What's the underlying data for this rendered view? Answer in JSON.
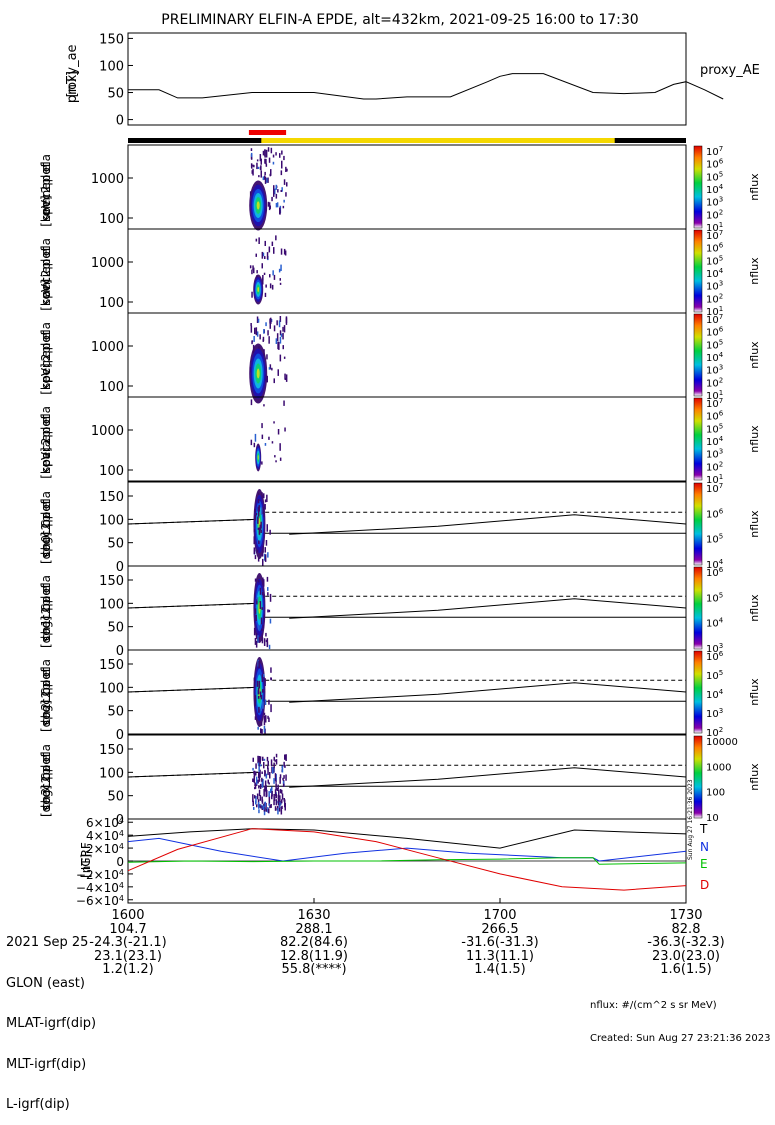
{
  "title": "PRELIMINARY ELFIN-A EPDE, alt=432km, 2021-09-25 16:00 to 17:30",
  "colors": {
    "black_bar": "#000000",
    "yellow_bar": "#f5d800",
    "red_bar": "#ee0000",
    "comp_T": "#000000",
    "comp_N": "#1030e0",
    "comp_E": "#00c000",
    "comp_D": "#e00000"
  },
  "chart_data": [
    {
      "type": "line",
      "ylabel": "proxy_ae\n[nT]",
      "yticks": [
        "150",
        "100",
        "50",
        "0"
      ],
      "ylim": [
        -10,
        160
      ],
      "series": [
        {
          "name": "proxy_AE",
          "x": [
            0,
            5,
            8,
            12,
            20,
            30,
            38,
            40,
            45,
            52,
            58,
            60,
            62,
            67,
            75,
            80,
            85,
            88,
            90,
            93,
            96
          ],
          "y": [
            55,
            55,
            40,
            40,
            50,
            50,
            38,
            38,
            42,
            42,
            70,
            80,
            85,
            85,
            50,
            48,
            50,
            65,
            70,
            55,
            38
          ]
        }
      ]
    },
    {
      "type": "heatmap",
      "panels": [
        {
          "ylabel": "ela\npef\nen\nspec2plot\nomni\n[keV]",
          "yticks": [
            "1000",
            "100"
          ],
          "zlabel": "nflux",
          "zticks": [
            "10^7",
            "10^6",
            "10^5",
            "10^4",
            "10^3",
            "10^2",
            "10^1"
          ]
        },
        {
          "ylabel": "ela\npef\nen\nspec2plot\nanti\n[keV]",
          "yticks": [
            "1000",
            "100"
          ],
          "zlabel": "nflux",
          "zticks": [
            "10^7",
            "10^6",
            "10^5",
            "10^4",
            "10^3",
            "10^2",
            "10^1"
          ]
        },
        {
          "ylabel": "ela\npef\nen\nspec2plot\nperp\n[keV]",
          "yticks": [
            "1000",
            "100"
          ],
          "zlabel": "nflux",
          "zticks": [
            "10^7",
            "10^6",
            "10^5",
            "10^4",
            "10^3",
            "10^2",
            "10^1"
          ]
        },
        {
          "ylabel": "ela\npef\nen\nspec2plot\npara\n[keV]",
          "yticks": [
            "1000",
            "100"
          ],
          "zlabel": "nflux",
          "zticks": [
            "10^7",
            "10^6",
            "10^5",
            "10^4",
            "10^3",
            "10^2",
            "10^1"
          ]
        },
        {
          "ylabel": "ela\npef\npa\nspec2plot\nch0LC\n[deg]",
          "yticks": [
            "150",
            "100",
            "50",
            "0"
          ],
          "zlabel": "nflux",
          "zticks": [
            "10^7",
            "10^6",
            "10^5",
            "10^4"
          ]
        },
        {
          "ylabel": "ela\npef\npa\nspec2plot\nch1LC\n[deg]",
          "yticks": [
            "150",
            "100",
            "50",
            "0"
          ],
          "zlabel": "nflux",
          "zticks": [
            "10^6",
            "10^5",
            "10^4",
            "10^3"
          ]
        },
        {
          "ylabel": "ela\npef\npa\nspec2plot\nch2LC\n[deg]",
          "yticks": [
            "150",
            "100",
            "50",
            "0"
          ],
          "zlabel": "nflux",
          "zticks": [
            "10^6",
            "10^5",
            "10^4",
            "10^3",
            "10^2"
          ]
        },
        {
          "ylabel": "ela\npef\npa\nspec2plot\nch3LC\n[deg]",
          "yticks": [
            "150",
            "100",
            "50",
            "0"
          ],
          "zlabel": "nflux",
          "zticks": [
            "10000",
            "1000",
            "100",
            "10"
          ]
        }
      ]
    },
    {
      "type": "line",
      "ylabel": "IGRF\n[nT]",
      "yticks": [
        "6×10^4",
        "4×10^4",
        "2×10^4",
        "0",
        "−2×10^4",
        "−4×10^4",
        "−6×10^4"
      ],
      "ylim": [
        -65000,
        65000
      ],
      "series": [
        {
          "name": "T",
          "x": [
            0,
            10,
            20,
            30,
            45,
            60,
            72,
            80,
            90
          ],
          "y": [
            38000,
            45000,
            50000,
            48000,
            35000,
            20000,
            48000,
            45000,
            42000
          ]
        },
        {
          "name": "N",
          "x": [
            0,
            5,
            15,
            25,
            35,
            45,
            55,
            70,
            75,
            76,
            90
          ],
          "y": [
            30000,
            35000,
            15000,
            0,
            12000,
            20000,
            12000,
            5000,
            5000,
            0,
            15000
          ]
        },
        {
          "name": "E",
          "x": [
            0,
            10,
            20,
            30,
            40,
            50,
            60,
            70,
            75,
            76,
            90
          ],
          "y": [
            -2000,
            0,
            -1000,
            0,
            0,
            2000,
            3000,
            5000,
            5000,
            -5000,
            -3000
          ]
        },
        {
          "name": "D",
          "x": [
            0,
            8,
            20,
            30,
            40,
            50,
            60,
            70,
            80,
            90
          ],
          "y": [
            -15000,
            18000,
            50000,
            45000,
            30000,
            5000,
            -20000,
            -40000,
            -45000,
            -38000
          ]
        }
      ]
    }
  ],
  "axis_footer": {
    "rows": [
      {
        "label": "2021 Sep 25",
        "values": [
          "1600",
          "1630",
          "1700",
          "1730"
        ]
      },
      {
        "label": "GLON (east)",
        "values": [
          "104.7",
          "288.1",
          "266.5",
          "82.8"
        ]
      },
      {
        "label": "MLAT-igrf(dip)",
        "values": [
          "-24.3(-21.1)",
          "82.2(84.6)",
          "-31.6(-31.3)",
          "-36.3(-32.3)"
        ]
      },
      {
        "label": "MLT-igrf(dip)",
        "values": [
          "23.1(23.1)",
          "12.8(11.9)",
          "11.3(11.1)",
          "23.0(23.0)"
        ]
      },
      {
        "label": "L-igrf(dip)",
        "values": [
          "1.2(1.2)",
          "55.8(****)",
          "1.4(1.5)",
          "1.6(1.5)"
        ]
      }
    ]
  },
  "footnote": {
    "units": "nflux: #/(cm^2 s sr MeV)",
    "created": "Created: Sun Aug 27 23:21:36 2023",
    "stamp": "Sun Aug 27 16:21:36 2023"
  }
}
